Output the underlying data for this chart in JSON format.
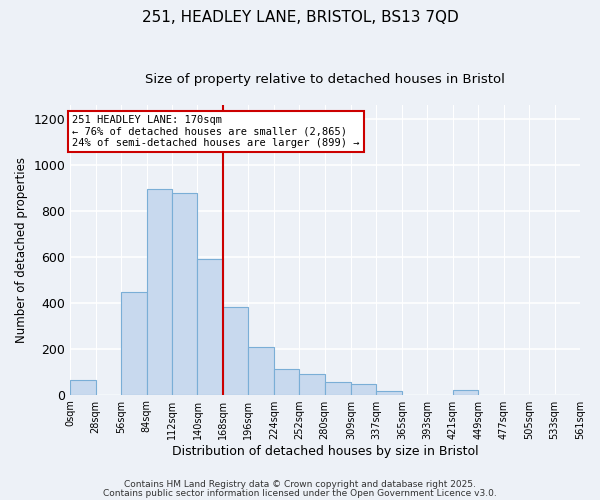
{
  "title_line1": "251, HEADLEY LANE, BRISTOL, BS13 7QD",
  "title_line2": "Size of property relative to detached houses in Bristol",
  "xlabel": "Distribution of detached houses by size in Bristol",
  "ylabel": "Number of detached properties",
  "bar_edges": [
    0,
    28,
    56,
    84,
    112,
    140,
    168,
    196,
    224,
    252,
    280,
    309,
    337,
    365,
    393,
    421,
    449,
    477,
    505,
    533,
    561
  ],
  "bar_heights": [
    65,
    0,
    447,
    895,
    875,
    590,
    380,
    205,
    113,
    88,
    55,
    47,
    15,
    0,
    0,
    18,
    0,
    0,
    0,
    0
  ],
  "bar_color": "#c8d9ee",
  "bar_edgecolor": "#7aaed6",
  "vline_x": 168,
  "vline_color": "#cc0000",
  "annotation_title": "251 HEADLEY LANE: 170sqm",
  "annotation_line2": "← 76% of detached houses are smaller (2,865)",
  "annotation_line3": "24% of semi-detached houses are larger (899) →",
  "annotation_box_edgecolor": "#cc0000",
  "annotation_box_facecolor": "#ffffff",
  "ylim": [
    0,
    1260
  ],
  "yticks": [
    0,
    200,
    400,
    600,
    800,
    1000,
    1200
  ],
  "xtick_labels": [
    "0sqm",
    "28sqm",
    "56sqm",
    "84sqm",
    "112sqm",
    "140sqm",
    "168sqm",
    "196sqm",
    "224sqm",
    "252sqm",
    "280sqm",
    "309sqm",
    "337sqm",
    "365sqm",
    "393sqm",
    "421sqm",
    "449sqm",
    "477sqm",
    "505sqm",
    "533sqm",
    "561sqm"
  ],
  "footer_line1": "Contains HM Land Registry data © Crown copyright and database right 2025.",
  "footer_line2": "Contains public sector information licensed under the Open Government Licence v3.0.",
  "background_color": "#edf1f7",
  "grid_color": "#ffffff",
  "title_fontsize": 11,
  "subtitle_fontsize": 9.5
}
